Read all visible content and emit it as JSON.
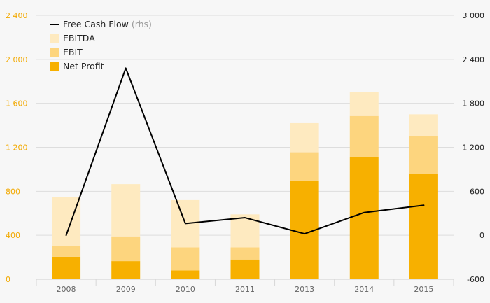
{
  "chart_data": {
    "type": "bar",
    "stacked": true,
    "categories": [
      "2008",
      "2009",
      "2010",
      "2011",
      "2013",
      "2014",
      "2015"
    ],
    "series": [
      {
        "name": "Net Profit",
        "kind": "bar",
        "axis": "left",
        "color": "#f7b000",
        "values": [
          205,
          165,
          80,
          180,
          895,
          1110,
          955
        ]
      },
      {
        "name": "EBIT",
        "kind": "bar",
        "axis": "left",
        "color": "#fdd57e",
        "values": [
          95,
          225,
          210,
          110,
          260,
          375,
          350
        ]
      },
      {
        "name": "EBITDA",
        "kind": "bar",
        "axis": "left",
        "color": "#feeac0",
        "values": [
          450,
          475,
          430,
          300,
          265,
          215,
          195
        ]
      },
      {
        "name": "Free Cash Flow",
        "kind": "line",
        "axis": "right",
        "color": "#000000",
        "values": [
          0,
          2280,
          160,
          240,
          20,
          310,
          410
        ]
      }
    ],
    "legend": {
      "position": "top-left",
      "entries": [
        "Free Cash Flow",
        "EBITDA",
        "EBIT",
        "Net Profit"
      ],
      "line_suffix": "(rhs)"
    },
    "y_left": {
      "ylim": [
        0,
        2400
      ],
      "ticks": [
        0,
        400,
        800,
        1200,
        1600,
        2000,
        2400
      ],
      "tick_labels": [
        "0",
        "400",
        "800",
        "1 200",
        "1 600",
        "2 000",
        "2 400"
      ]
    },
    "y_right": {
      "ylim": [
        -600,
        3000
      ],
      "ticks": [
        -600,
        0,
        600,
        1200,
        1800,
        2400,
        3000
      ],
      "tick_labels": [
        "-600",
        "0",
        "600",
        "1 200",
        "1 800",
        "2 400",
        "3 000"
      ]
    },
    "grid": true,
    "title": "",
    "xlabel": "",
    "ylabel": ""
  }
}
